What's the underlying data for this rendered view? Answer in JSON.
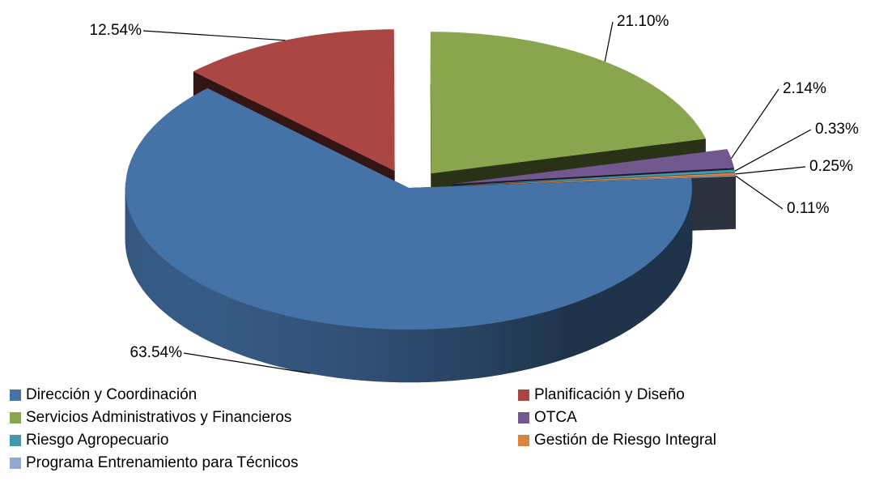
{
  "chart_data": {
    "type": "pie",
    "categories": [
      "Dirección y Coordinación",
      "Planificación y Diseño",
      "Servicios Administrativos y Financieros",
      "OTCA",
      "Riesgo Agropecuario",
      "Gestión de Riesgo Integral",
      "Programa  Entrenamiento para Técnicos"
    ],
    "values": [
      63.54,
      12.54,
      21.1,
      2.14,
      0.33,
      0.25,
      0.11
    ],
    "value_labels": [
      "63.54%",
      "12.54%",
      "21.10%",
      "2.14%",
      "0.33%",
      "0.25%",
      "0.11%"
    ],
    "colors": [
      "#4572a7",
      "#aa4643",
      "#89a54e",
      "#71588f",
      "#4198af",
      "#db843d",
      "#93a9cf"
    ],
    "legend": "bottom"
  }
}
